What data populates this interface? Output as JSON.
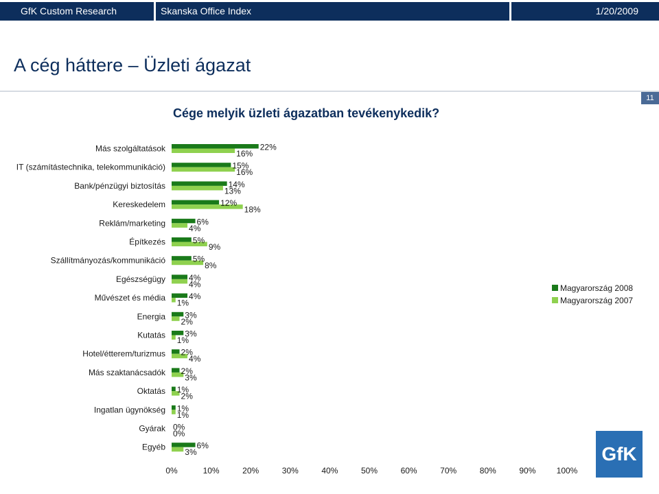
{
  "header": {
    "left_label": "GfK Custom Research",
    "center_label": "Skanska Office Index",
    "date_label": "1/20/2009"
  },
  "page": {
    "title": "A cég háttere – Üzleti ágazat",
    "page_number": "11",
    "logo_text": "GfK"
  },
  "chart_data": {
    "type": "bar",
    "orientation": "horizontal",
    "title": "Cége melyik üzleti ágazatban tevékenykedik?",
    "categories": [
      "Más szolgáltatások",
      "IT (számítástechnika, telekommunikáció)",
      "Bank/pénzügyi biztosítás",
      "Kereskedelem",
      "Reklám/marketing",
      "Építkezés",
      "Szállítmányozás/kommunikáció",
      "Egészségügy",
      "Művészet és média",
      "Energia",
      "Kutatás",
      "Hotel/étterem/turizmus",
      "Más szaktanácsadók",
      "Oktatás",
      "Ingatlan ügynökség",
      "Gyárak",
      "Egyéb"
    ],
    "series": [
      {
        "name": "Magyarország 2008",
        "color": "#1a7a1a",
        "values": [
          22,
          15,
          14,
          12,
          6,
          5,
          5,
          4,
          4,
          3,
          3,
          2,
          2,
          1,
          1,
          0,
          6
        ]
      },
      {
        "name": "Magyarország 2007",
        "color": "#8fd14f",
        "values": [
          16,
          16,
          13,
          18,
          4,
          9,
          8,
          4,
          1,
          2,
          1,
          4,
          3,
          2,
          1,
          0,
          3
        ]
      }
    ],
    "xlim": [
      0,
      100
    ],
    "xticks": [
      "0%",
      "10%",
      "20%",
      "30%",
      "40%",
      "50%",
      "60%",
      "70%",
      "80%",
      "90%",
      "100%"
    ],
    "value_suffix": "%",
    "legend_position": "right",
    "grid": false
  }
}
